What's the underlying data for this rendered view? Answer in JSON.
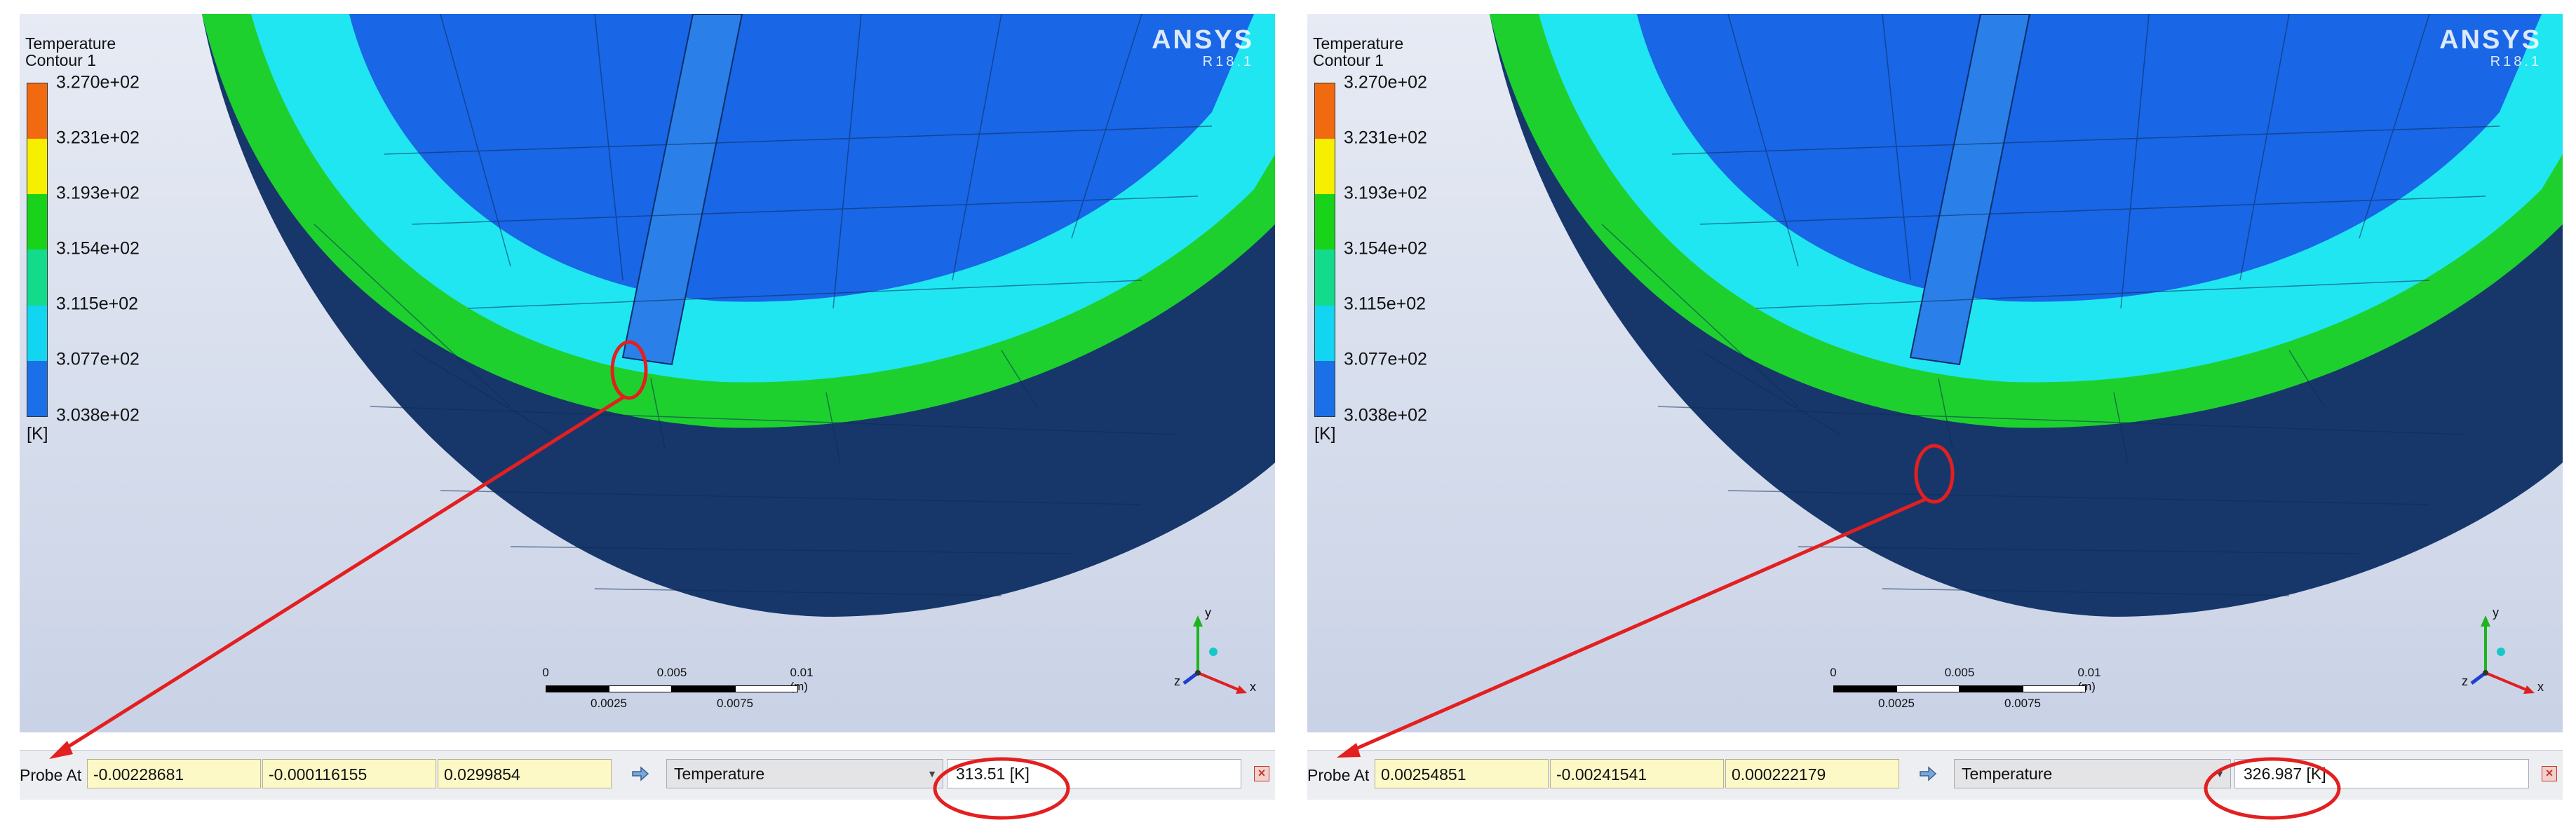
{
  "colors": {
    "legend": [
      "#f26a10",
      "#f6ef00",
      "#19d21a",
      "#12dc8c",
      "#12d5f2",
      "#1b70e8"
    ],
    "annotation": "#e31f1f",
    "inner_blue": "#1966e6",
    "dark_band": "#17376b"
  },
  "panels": [
    {
      "legend": {
        "title_line1": "Temperature",
        "title_line2": "Contour 1",
        "labels": [
          "3.270e+02",
          "3.231e+02",
          "3.193e+02",
          "3.154e+02",
          "3.115e+02",
          "3.077e+02",
          "3.038e+02"
        ],
        "unit": "[K]"
      },
      "logo": {
        "word": "ANSYS",
        "sub": "R18.1"
      },
      "scale": {
        "ticks_top": [
          "0",
          "0.005",
          "0.01 (m)"
        ],
        "ticks_bottom": [
          "0.0025",
          "0.0075"
        ]
      },
      "axes": {
        "x": "x",
        "y": "y",
        "z": "z"
      },
      "probe": {
        "label": "Probe At",
        "x": "-0.00228681",
        "y": "-0.000116155",
        "z": "0.0299854",
        "variable": "Temperature",
        "value": "313.51 [K]"
      }
    },
    {
      "legend": {
        "title_line1": "Temperature",
        "title_line2": "Contour 1",
        "labels": [
          "3.270e+02",
          "3.231e+02",
          "3.193e+02",
          "3.154e+02",
          "3.115e+02",
          "3.077e+02",
          "3.038e+02"
        ],
        "unit": "[K]"
      },
      "logo": {
        "word": "ANSYS",
        "sub": "R18.1"
      },
      "scale": {
        "ticks_top": [
          "0",
          "0.005",
          "0.01 (m)"
        ],
        "ticks_bottom": [
          "0.0025",
          "0.0075"
        ]
      },
      "axes": {
        "x": "x",
        "y": "y",
        "z": "z"
      },
      "probe": {
        "label": "Probe At",
        "x": "0.00254851",
        "y": "-0.00241541",
        "z": "0.000222179",
        "variable": "Temperature",
        "value": "326.987 [K]"
      }
    }
  ]
}
